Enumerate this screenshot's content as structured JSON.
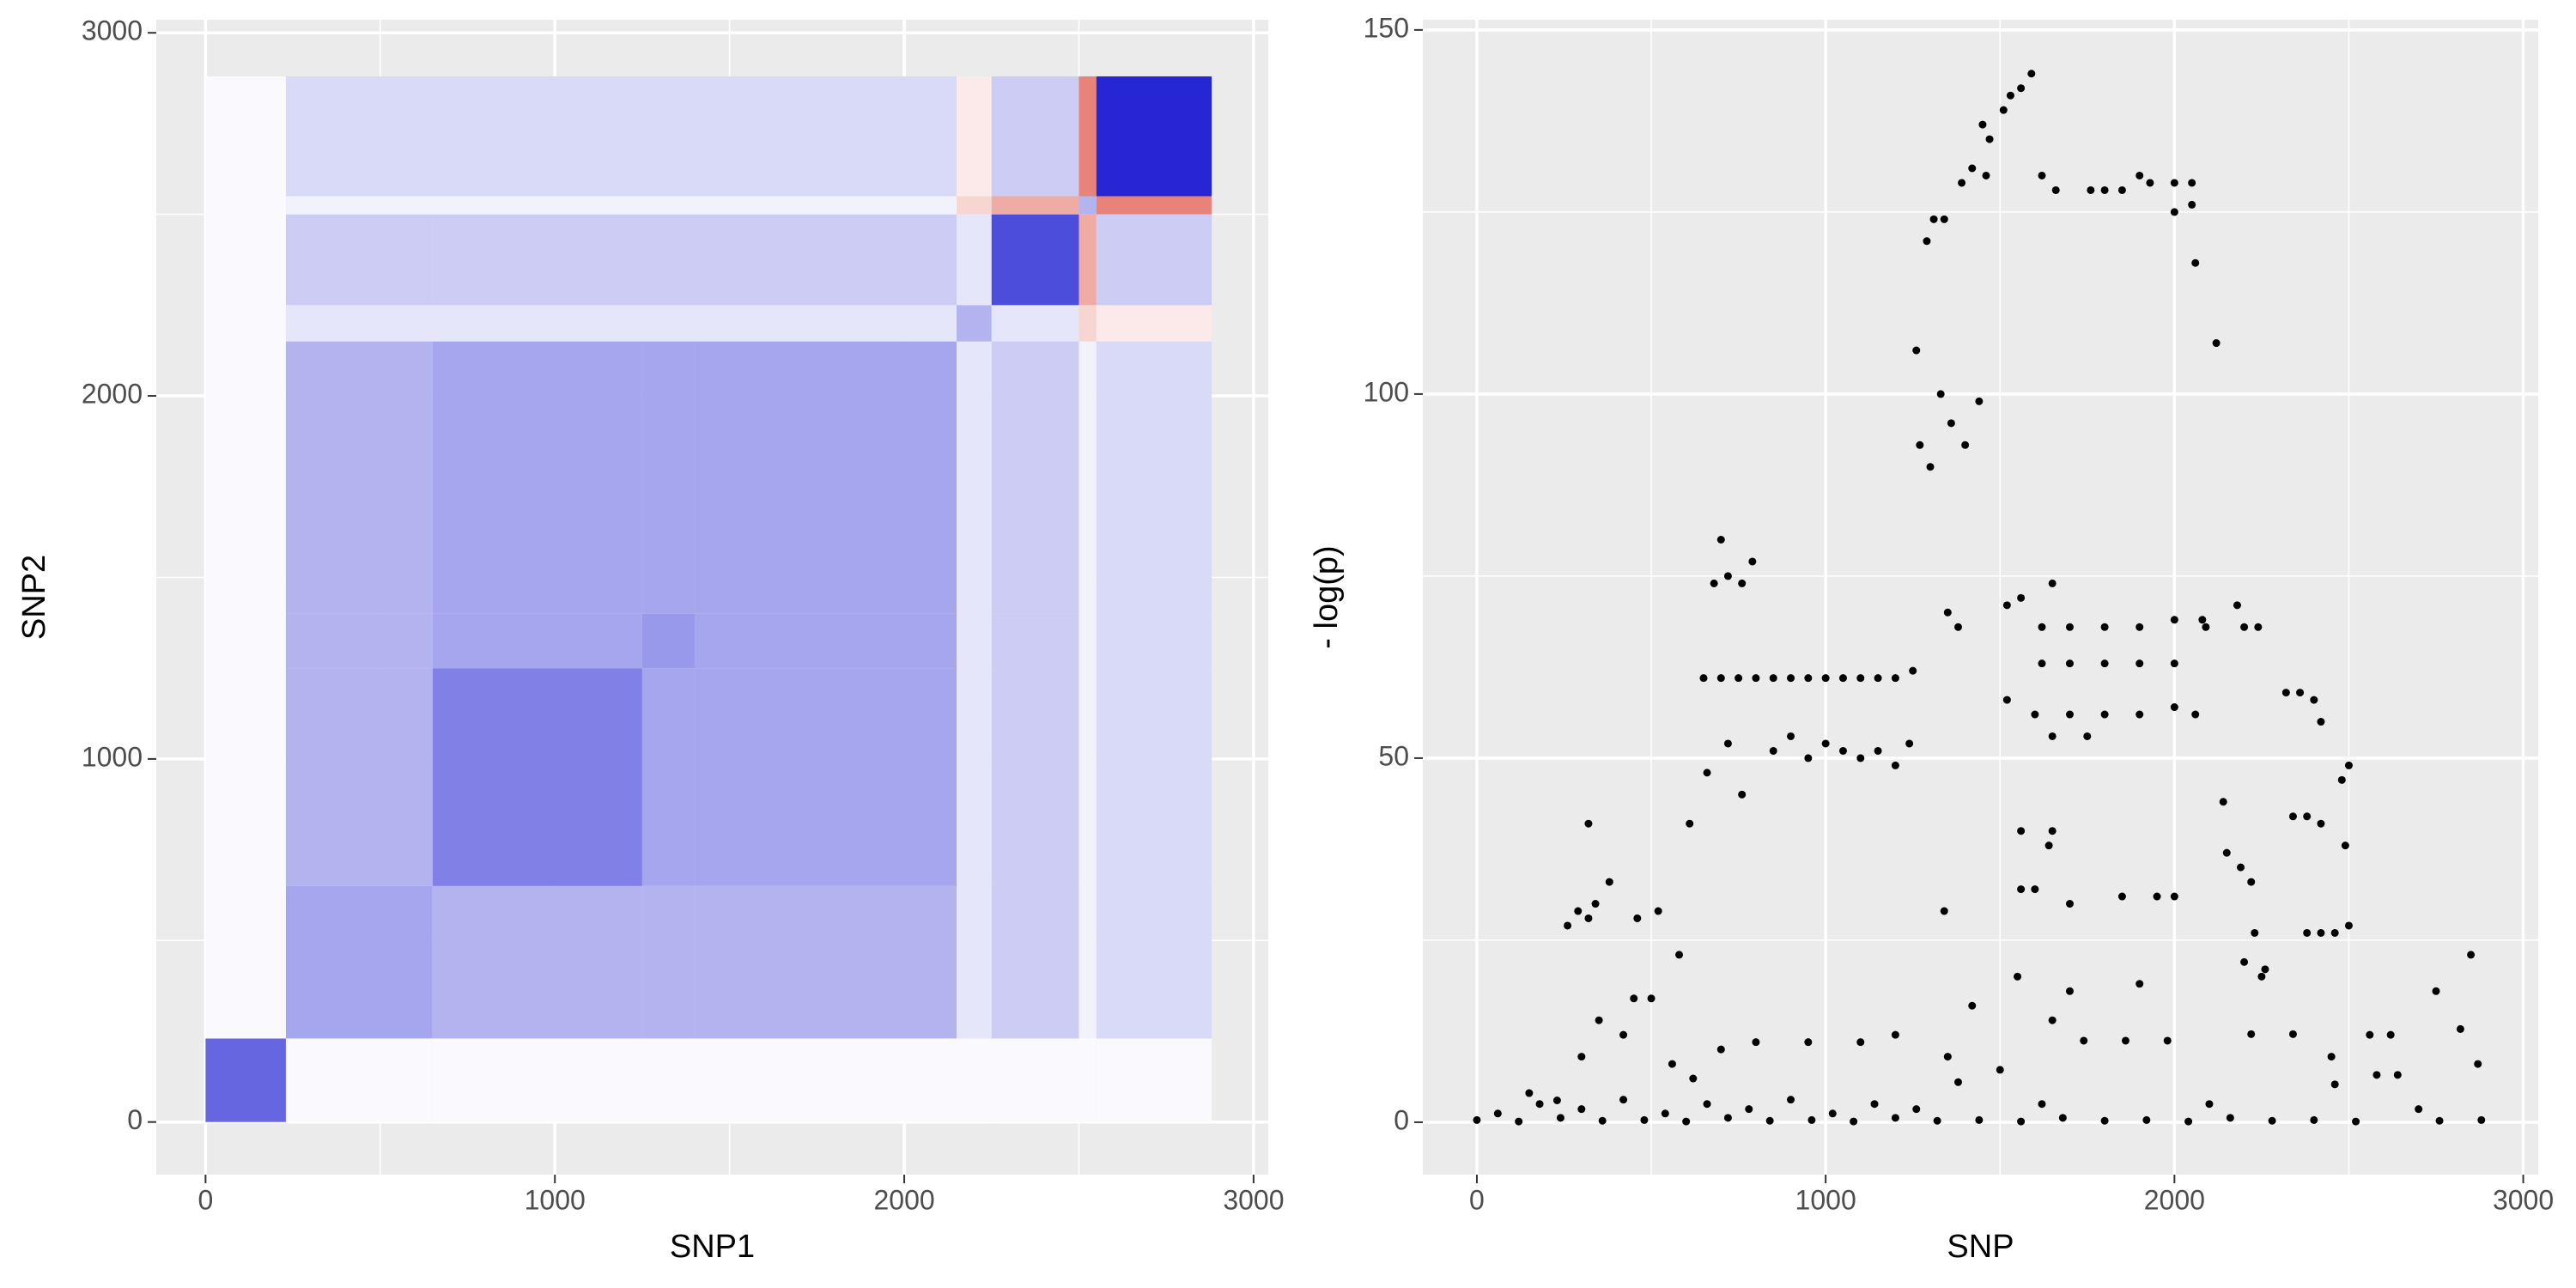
{
  "chart_data": [
    {
      "type": "heatmap",
      "x_label": "SNP1",
      "y_label": "SNP2",
      "x_edges": [
        0,
        230,
        650,
        1250,
        1400,
        2150,
        2250,
        2500,
        2550,
        2880
      ],
      "y_edges": [
        0,
        230,
        650,
        1250,
        1400,
        2150,
        2250,
        2500,
        2550,
        2880
      ],
      "values": [
        [
          0.6,
          0.02,
          0.02,
          0.02,
          0.02,
          0.02,
          0.02,
          0.02,
          0.02
        ],
        [
          0.02,
          0.35,
          0.3,
          0.3,
          0.3,
          0.1,
          0.2,
          0.05,
          0.15
        ],
        [
          0.02,
          0.3,
          0.5,
          0.35,
          0.35,
          0.1,
          0.2,
          0.05,
          0.15
        ],
        [
          0.02,
          0.3,
          0.35,
          0.4,
          0.35,
          0.1,
          0.2,
          0.05,
          0.15
        ],
        [
          0.02,
          0.3,
          0.35,
          0.35,
          0.35,
          0.1,
          0.2,
          0.05,
          0.15
        ],
        [
          0.02,
          0.1,
          0.1,
          0.1,
          0.1,
          0.3,
          0.1,
          -0.2,
          -0.1
        ],
        [
          0.02,
          0.2,
          0.2,
          0.2,
          0.2,
          0.1,
          0.7,
          -0.4,
          0.2
        ],
        [
          0.02,
          0.05,
          0.05,
          0.05,
          0.05,
          -0.2,
          -0.4,
          0.3,
          -0.6
        ],
        [
          0.02,
          0.15,
          0.15,
          0.15,
          0.15,
          -0.1,
          0.2,
          -0.6,
          0.85
        ]
      ],
      "clim": [
        -1,
        1
      ],
      "colors": {
        "low": "#d7301f",
        "mid": "#ffffff",
        "high": "#0000cd"
      },
      "xlim": [
        -141,
        3042
      ],
      "ylim": [
        -145,
        3036
      ],
      "xticks": [
        0,
        1000,
        2000,
        3000
      ],
      "yticks": [
        0,
        1000,
        2000,
        3000
      ],
      "grid": true
    },
    {
      "type": "scatter",
      "x_label": "SNP",
      "y_label": "- log(p)",
      "color": "#000000",
      "x": [
        0,
        60,
        120,
        180,
        240,
        300,
        360,
        420,
        480,
        540,
        600,
        660,
        720,
        780,
        840,
        900,
        960,
        1020,
        1080,
        1140,
        1200,
        1260,
        1320,
        1380,
        1440,
        1500,
        1560,
        1620,
        1680,
        1740,
        1800,
        1860,
        1920,
        1980,
        2040,
        2100,
        2160,
        2220,
        2280,
        2340,
        2400,
        2460,
        2520,
        2580,
        2640,
        2700,
        2760,
        2820,
        2880,
        150,
        230,
        300,
        350,
        420,
        450,
        500,
        560,
        620,
        700,
        800,
        950,
        1100,
        1200,
        1350,
        1420,
        1550,
        1650,
        1700,
        1900,
        2250,
        2450,
        2560,
        2620,
        2750,
        2850,
        2870,
        260,
        290,
        320,
        340,
        320,
        380,
        460,
        520,
        580,
        610,
        650,
        700,
        750,
        800,
        850,
        900,
        950,
        1000,
        1050,
        1100,
        1150,
        1200,
        1250,
        680,
        700,
        720,
        760,
        790,
        660,
        720,
        760,
        850,
        900,
        950,
        1000,
        1050,
        1100,
        1150,
        1200,
        1240,
        1270,
        1260,
        1290,
        1310,
        1340,
        1300,
        1330,
        1360,
        1400,
        1440,
        1380,
        1350,
        1340,
        1390,
        1420,
        1460,
        1450,
        1470,
        1510,
        1530,
        1560,
        1590,
        1620,
        1660,
        1760,
        1800,
        1850,
        1900,
        1930,
        2000,
        2050,
        2000,
        2050,
        2060,
        2120,
        1520,
        1560,
        1650,
        1620,
        1700,
        1800,
        1900,
        2000,
        2080,
        1620,
        1700,
        1800,
        1900,
        2000,
        1520,
        1600,
        1700,
        1800,
        1900,
        2000,
        2060,
        1650,
        1750,
        1560,
        1600,
        1650,
        1700,
        1850,
        1950,
        2000,
        1560,
        1640,
        2090,
        2200,
        2240,
        2180,
        2140,
        2150,
        2190,
        2220,
        2200,
        2260,
        2230,
        2320,
        2360,
        2400,
        2420,
        2340,
        2380,
        2420,
        2480,
        2500,
        2490,
        2380,
        2420,
        2460,
        2500
      ],
      "y": [
        0.3,
        1.2,
        0.1,
        2.5,
        0.6,
        1.8,
        0.2,
        3.1,
        0.3,
        1.2,
        0.1,
        2.5,
        0.6,
        1.8,
        0.2,
        3.1,
        0.3,
        1.2,
        0.1,
        2.5,
        0.6,
        1.8,
        0.2,
        5.5,
        0.3,
        7.2,
        0.1,
        2.5,
        0.6,
        11.2,
        0.2,
        11.2,
        0.3,
        11.2,
        0.1,
        2.5,
        0.6,
        12.1,
        0.2,
        12.1,
        0.3,
        5.2,
        0.1,
        6.5,
        6.5,
        1.8,
        0.2,
        12.8,
        0.3,
        4,
        3,
        9,
        14,
        12,
        17,
        17,
        8,
        6,
        10,
        11,
        11,
        11,
        12,
        9,
        16,
        20,
        14,
        18,
        19,
        20,
        9,
        12,
        12,
        18,
        23,
        8,
        27,
        29,
        28,
        30,
        41,
        33,
        28,
        29,
        23,
        41,
        61,
        61,
        61,
        61,
        61,
        61,
        61,
        61,
        61,
        61,
        61,
        61,
        62,
        74,
        80,
        75,
        74,
        77,
        48,
        52,
        45,
        51,
        53,
        50,
        52,
        51,
        50,
        51,
        49,
        52,
        93,
        106,
        121,
        124,
        124,
        90,
        100,
        96,
        93,
        99,
        68,
        70,
        29,
        129,
        131,
        130,
        137,
        135,
        139,
        141,
        142,
        144,
        130,
        128,
        128,
        128,
        128,
        130,
        129,
        129,
        129,
        125,
        126,
        118,
        107,
        71,
        72,
        74,
        68,
        68,
        68,
        68,
        69,
        69,
        63,
        63,
        63,
        63,
        63,
        58,
        56,
        56,
        56,
        56,
        57,
        56,
        53,
        53,
        32,
        32,
        40,
        30,
        31,
        31,
        31,
        40,
        38,
        68,
        68,
        68,
        71,
        44,
        37,
        35,
        33,
        22,
        21,
        26,
        59,
        59,
        58,
        55,
        42,
        42,
        41,
        47,
        49,
        38,
        26,
        26,
        26,
        27
      ],
      "xlim": [
        -155,
        3043
      ],
      "ylim": [
        -7.2,
        151.4
      ],
      "xticks": [
        0,
        1000,
        2000,
        3000
      ],
      "yticks": [
        0,
        50,
        100,
        150
      ],
      "grid": true
    }
  ]
}
